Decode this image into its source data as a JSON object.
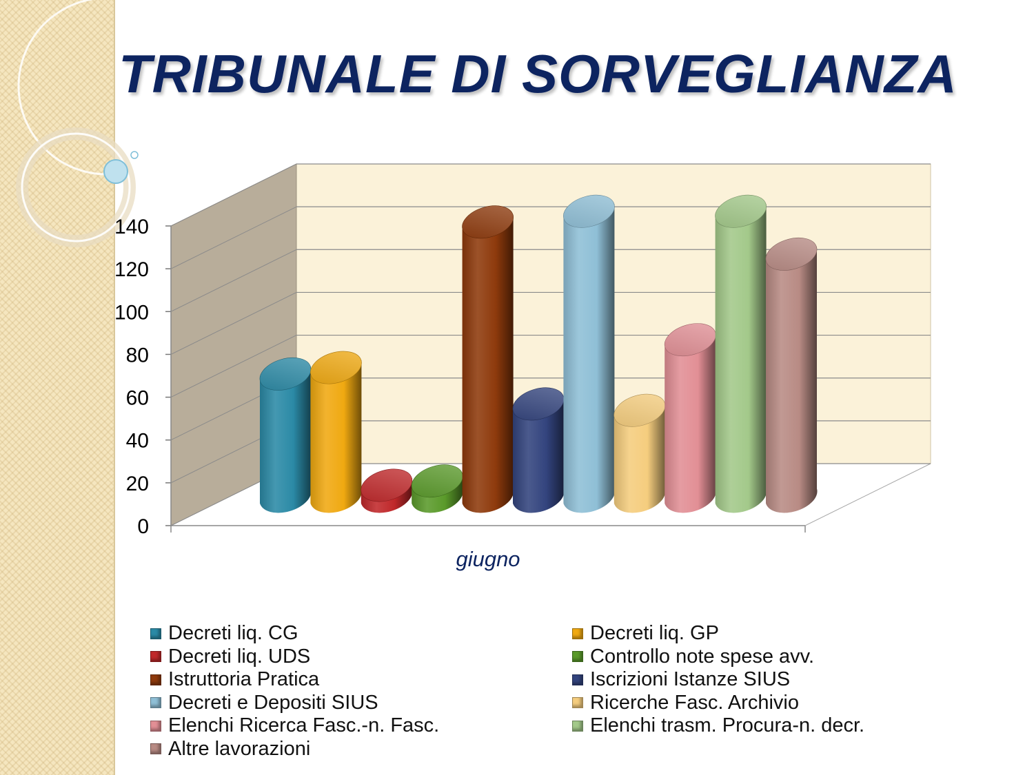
{
  "slide": {
    "title": "TRIBUNALE DI SORVEGLIANZA"
  },
  "chart_data": {
    "type": "bar",
    "categories": [
      "giugno"
    ],
    "ylim": [
      0,
      140
    ],
    "yticks": [
      "0",
      "20",
      "40",
      "60",
      "80",
      "100",
      "120",
      "140"
    ],
    "series": [
      {
        "name": "Decreti liq. CG",
        "values": [
          57
        ],
        "color": "#2b8aa6"
      },
      {
        "name": "Decreti liq. GP",
        "values": [
          60
        ],
        "color": "#f0a911"
      },
      {
        "name": "Decreti liq. UDS",
        "values": [
          5
        ],
        "color": "#c0282a"
      },
      {
        "name": "Controllo note spese avv.",
        "values": [
          7
        ],
        "color": "#5a9a2a"
      },
      {
        "name": "Istruttoria Pratica",
        "values": [
          128
        ],
        "color": "#8e3a0c"
      },
      {
        "name": "Iscrizioni Istanze SIUS",
        "values": [
          43
        ],
        "color": "#33447e"
      },
      {
        "name": "Decreti e Depositi SIUS",
        "values": [
          133
        ],
        "color": "#8fbfd6"
      },
      {
        "name": "Ricerche Fasc. Archivio",
        "values": [
          40
        ],
        "color": "#f5cd7e"
      },
      {
        "name": "Elenchi Ricerca Fasc.-n. Fasc.",
        "values": [
          73
        ],
        "color": "#e28f95"
      },
      {
        "name": "Elenchi trasm. Procura-n. decr.",
        "values": [
          133
        ],
        "color": "#a3c98a"
      },
      {
        "name": "Altre lavorazioni",
        "values": [
          113
        ],
        "color": "#b88b84"
      }
    ],
    "legend_position": "bottom",
    "grid": true
  }
}
